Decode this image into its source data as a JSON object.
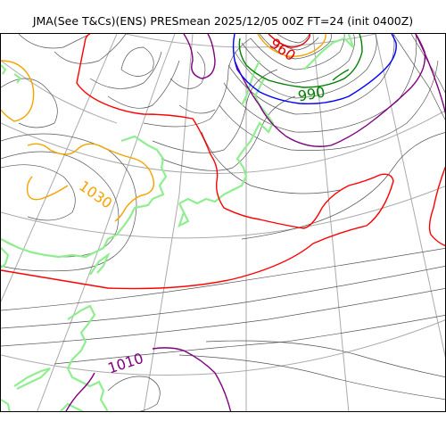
{
  "title": "JMA(See T&Cs)(ENS) PRESmean 2025/12/05 00Z FT=24 (init 0400Z)",
  "contour_labels": {
    "label_960": "960",
    "label_990": "990",
    "label_1030": "1030",
    "label_1010": "1010"
  },
  "colors": {
    "isobar_thin": "#555555",
    "isobar_960": "#e00000",
    "isobar_990": "#008000",
    "isobar_1030": "#f5a300",
    "isobar_1010": "#800080",
    "isobar_1020": "#ff0000",
    "isobar_1000": "#800080",
    "isobar_980": "#0000ff",
    "coastline": "#90ee90",
    "graticule": "#aaaaaa"
  }
}
